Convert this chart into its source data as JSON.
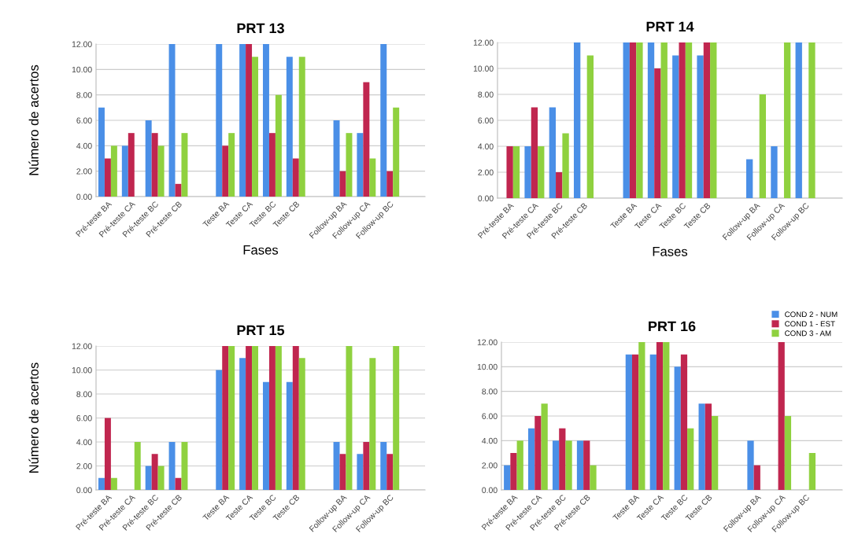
{
  "chart_data": [
    {
      "type": "bar",
      "title": "PRT 13",
      "xlabel": "Fases",
      "ylabel": "Número de acertos",
      "grid": "y",
      "legend": false,
      "categories": [
        "Pré-teste BA",
        "Pré-teste CA",
        "Pré-teste BC",
        "Pré-teste CB",
        null,
        "Teste BA",
        "Teste CA",
        "Teste BC",
        "Teste CB",
        null,
        "Follow-up BA",
        "Follow-up CA",
        "Follow-up BC",
        null
      ],
      "ylim": [
        0,
        12
      ],
      "yticks": [
        {
          "value": 0,
          "label": "0.00"
        },
        {
          "value": 2,
          "label": "2.00"
        },
        {
          "value": 4,
          "label": "4.00"
        },
        {
          "value": 6,
          "label": "6.00"
        },
        {
          "value": 8,
          "label": "8.00"
        },
        {
          "value": 10,
          "label": "10.00"
        },
        {
          "value": 12,
          "label": "12.00"
        }
      ],
      "series": [
        {
          "color": "#4a8fe7",
          "values": [
            7,
            4,
            6,
            12,
            null,
            12,
            12,
            12,
            11,
            null,
            6,
            5,
            12,
            null
          ]
        },
        {
          "color": "#c0264f",
          "values": [
            3,
            5,
            5,
            1,
            null,
            4,
            12,
            5,
            3,
            null,
            2,
            9,
            2,
            null
          ]
        },
        {
          "color": "#8fd13f",
          "values": [
            4,
            0,
            4,
            5,
            null,
            5,
            11,
            8,
            11,
            null,
            5,
            3,
            7,
            null
          ]
        }
      ]
    },
    {
      "type": "bar",
      "title": "PRT 14",
      "xlabel": "Fases",
      "grid": "y",
      "legend": false,
      "categories": [
        "Pré-teste BA",
        "Pré-teste CA",
        "Pré-teste BC",
        "Pré-teste CB",
        null,
        "Teste BA",
        "Teste CA",
        "Teste BC",
        "Teste CB",
        null,
        "Follow-up BA",
        "Follow-up CA",
        "Follow-up BC",
        null
      ],
      "ylim": [
        0,
        12
      ],
      "yticks": [
        {
          "value": 0,
          "label": "0.00"
        },
        {
          "value": 2,
          "label": "2.00"
        },
        {
          "value": 4,
          "label": "4.00"
        },
        {
          "value": 6,
          "label": "6.00"
        },
        {
          "value": 8,
          "label": "8.00"
        },
        {
          "value": 10,
          "label": "10.00"
        },
        {
          "value": 12,
          "label": "12.00"
        }
      ],
      "series": [
        {
          "color": "#4a8fe7",
          "values": [
            0,
            4,
            7,
            12,
            null,
            12,
            12,
            11,
            11,
            null,
            3,
            4,
            12,
            null
          ]
        },
        {
          "color": "#c0264f",
          "values": [
            4,
            7,
            2,
            0,
            null,
            12,
            10,
            12,
            12,
            null,
            0,
            0,
            0,
            null
          ]
        },
        {
          "color": "#8fd13f",
          "values": [
            4,
            4,
            5,
            11,
            null,
            12,
            12,
            12,
            12,
            null,
            8,
            12,
            12,
            null
          ]
        }
      ]
    },
    {
      "type": "bar",
      "title": "PRT 15",
      "ylabel": "Número de acertos",
      "grid": "y",
      "legend": false,
      "categories": [
        "Pré-teste BA",
        "Pré-teste CA",
        "Pré-teste BC",
        "Pré-teste CB",
        null,
        "Teste BA",
        "Teste CA",
        "Teste BC",
        "Teste CB",
        null,
        "Follow-up BA",
        "Follow-up CA",
        "Follow-up BC",
        null
      ],
      "ylim": [
        0,
        12
      ],
      "yticks": [
        {
          "value": 0,
          "label": "0.00"
        },
        {
          "value": 2,
          "label": "2.00"
        },
        {
          "value": 4,
          "label": "4.00"
        },
        {
          "value": 6,
          "label": "6.00"
        },
        {
          "value": 8,
          "label": "8.00"
        },
        {
          "value": 10,
          "label": "10.00"
        },
        {
          "value": 12,
          "label": "12.00"
        }
      ],
      "series": [
        {
          "color": "#4a8fe7",
          "values": [
            1,
            0,
            2,
            4,
            null,
            10,
            11,
            9,
            9,
            null,
            4,
            3,
            4,
            null
          ]
        },
        {
          "color": "#c0264f",
          "values": [
            6,
            0,
            3,
            1,
            null,
            12,
            12,
            12,
            12,
            null,
            3,
            4,
            3,
            null
          ]
        },
        {
          "color": "#8fd13f",
          "values": [
            1,
            4,
            2,
            4,
            null,
            12,
            12,
            12,
            11,
            null,
            12,
            11,
            12,
            null
          ]
        }
      ]
    },
    {
      "type": "bar",
      "title": "PRT 16",
      "grid": "y",
      "legend": "top right",
      "categories": [
        "Pré-teste BA",
        "Pré-teste CA",
        "Pré-teste BC",
        "Pré-teste CB",
        null,
        "Teste BA",
        "Teste CA",
        "Teste BC",
        "Teste CB",
        null,
        "Follow-up BA",
        "Follow-up CA",
        "Follow-up BC",
        null
      ],
      "ylim": [
        0,
        12
      ],
      "yticks": [
        {
          "value": 0,
          "label": "0.00"
        },
        {
          "value": 2,
          "label": "2.00"
        },
        {
          "value": 4,
          "label": "4.00"
        },
        {
          "value": 6,
          "label": "6.00"
        },
        {
          "value": 8,
          "label": "8.00"
        },
        {
          "value": 10,
          "label": "10.00"
        },
        {
          "value": 12,
          "label": "12.00"
        }
      ],
      "series": [
        {
          "name": "COND 2 - NUM",
          "color": "#4a8fe7",
          "values": [
            2,
            5,
            4,
            4,
            null,
            11,
            11,
            10,
            7,
            null,
            4,
            0,
            0,
            null
          ]
        },
        {
          "name": "COND 1 - EST",
          "color": "#c0264f",
          "values": [
            3,
            6,
            5,
            4,
            null,
            11,
            12,
            11,
            7,
            null,
            2,
            12,
            0,
            null
          ]
        },
        {
          "name": "COND 3 - AM",
          "color": "#8fd13f",
          "values": [
            4,
            7,
            4,
            2,
            null,
            12,
            12,
            5,
            6,
            null,
            0,
            6,
            3,
            null
          ]
        }
      ]
    }
  ]
}
